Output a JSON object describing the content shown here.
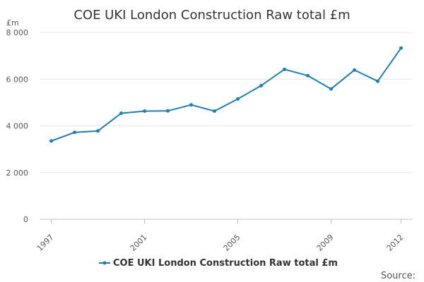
{
  "chart_data": {
    "type": "line",
    "title": "COE UKI London Construction Raw total £m",
    "ylabel": "£m",
    "xlabel": "",
    "ylim": [
      0,
      8000
    ],
    "yticks": [
      0,
      2000,
      4000,
      6000,
      8000
    ],
    "ytick_labels": [
      "0",
      "2 000",
      "4 000",
      "6 000",
      "8 000"
    ],
    "xticks": [
      1997,
      2001,
      2005,
      2009,
      2012
    ],
    "xtick_labels": [
      "1997",
      "2001",
      "2005",
      "2009",
      "2012"
    ],
    "grid": true,
    "legend": "bottom-center",
    "source_label": "Source:",
    "series": [
      {
        "name": "COE UKI London Construction Raw total £m",
        "color": "#1f7fb4",
        "x": [
          1997,
          1998,
          1999,
          2000,
          2001,
          2002,
          2003,
          2004,
          2005,
          2006,
          2007,
          2008,
          2009,
          2010,
          2011,
          2012
        ],
        "values": [
          3350,
          3720,
          3780,
          4540,
          4630,
          4640,
          4900,
          4630,
          5150,
          5720,
          6420,
          6150,
          5580,
          6390,
          5910,
          7330
        ]
      }
    ]
  }
}
